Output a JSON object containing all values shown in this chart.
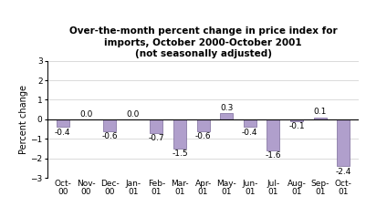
{
  "categories": [
    "Oct-\n00",
    "Nov-\n00",
    "Dec-\n00",
    "Jan-\n01",
    "Feb-\n01",
    "Mar-\n01",
    "Apr-\n01",
    "May-\n01",
    "Jun-\n01",
    "Jul-\n01",
    "Aug-\n01",
    "Sep-\n01",
    "Oct-\n01"
  ],
  "values": [
    -0.4,
    0.0,
    -0.6,
    0.0,
    -0.7,
    -1.5,
    -0.6,
    0.3,
    -0.4,
    -1.6,
    -0.1,
    0.1,
    -2.4
  ],
  "bar_color": "#b09fcc",
  "bar_edgecolor": "#7a6a99",
  "title_line1": "Over-the-month percent change in price index for",
  "title_line2": "imports, October 2000-October 2001",
  "title_line3": "(not seasonally adjusted)",
  "ylabel": "Percent change",
  "ylim": [
    -3,
    3
  ],
  "yticks": [
    -3,
    -2,
    -1,
    0,
    1,
    2,
    3
  ],
  "background_color": "#ffffff",
  "label_fontsize": 6.5,
  "title_fontsize": 7.5,
  "ylabel_fontsize": 7,
  "tick_fontsize": 6.5,
  "bar_width": 0.55
}
